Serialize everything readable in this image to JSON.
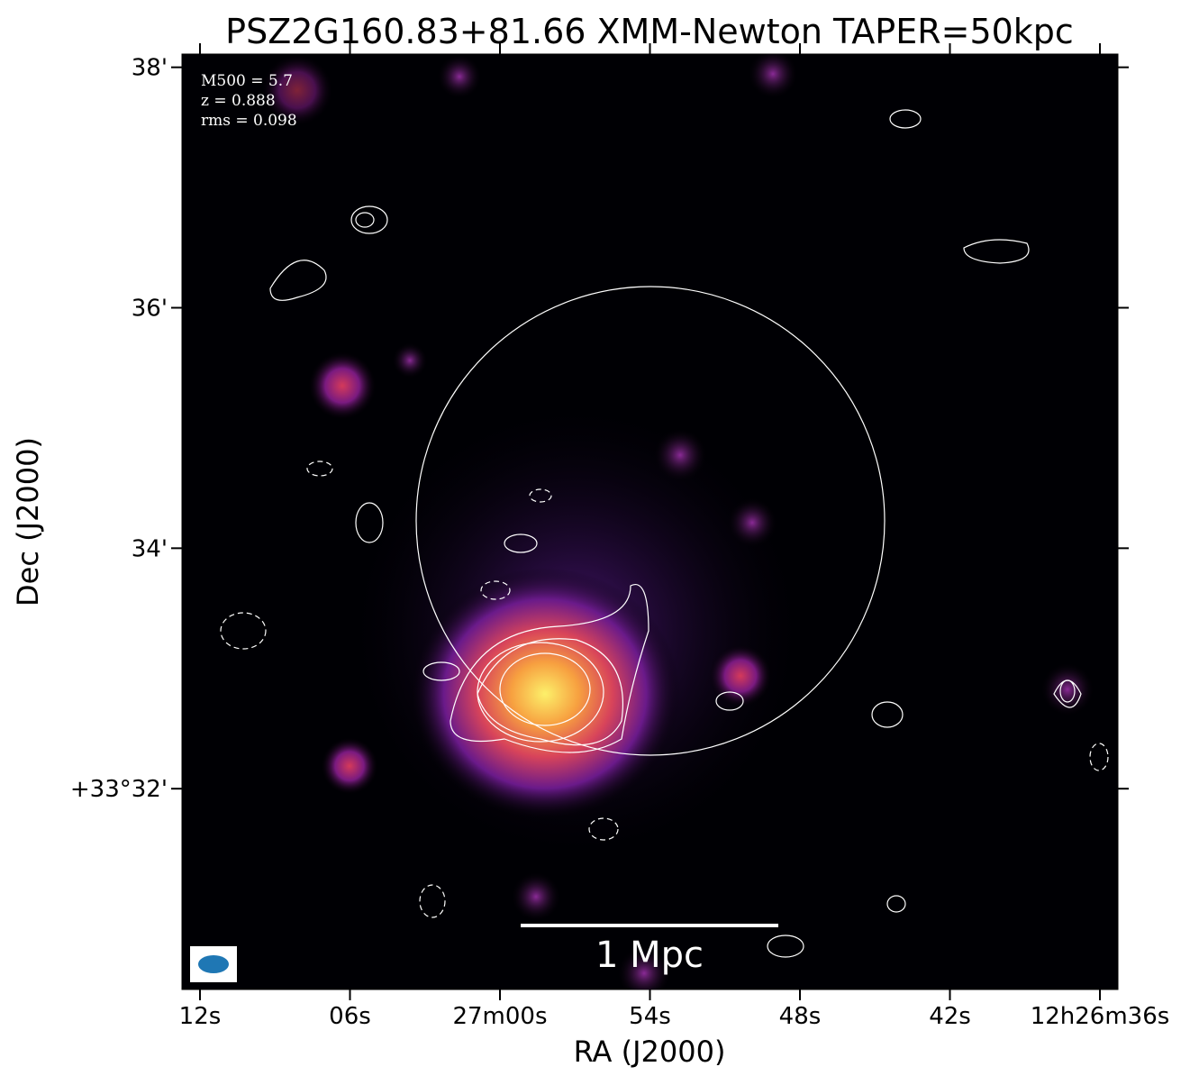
{
  "chart_data": {
    "type": "image",
    "title": "PSZ2G160.83+81.66 XMM-Newton TAPER=50kpc",
    "x_label": "RA (J2000)",
    "y_label": "Dec (J2000)",
    "annotations": [
      "M500 = 5.7",
      "z = 0.888",
      "rms = 0.098"
    ],
    "scale_bar": "1 Mpc",
    "xlim": [
      72.72,
      35.28
    ],
    "xticks": [
      {
        "value": 72,
        "label": "12s"
      },
      {
        "value": 66,
        "label": "06s"
      },
      {
        "value": 60,
        "label": "27m00s"
      },
      {
        "value": 54,
        "label": "54s"
      },
      {
        "value": 48,
        "label": "48s"
      },
      {
        "value": 42,
        "label": "42s"
      },
      {
        "value": 36,
        "label": "12h26m36s"
      }
    ],
    "ylim": [
      30.33,
      38.11
    ],
    "yticks": [
      {
        "value": 32,
        "label": "+33°32'"
      },
      {
        "value": 34,
        "label": "34'"
      },
      {
        "value": 36,
        "label": "36'"
      },
      {
        "value": 38,
        "label": "38'"
      }
    ]
  }
}
